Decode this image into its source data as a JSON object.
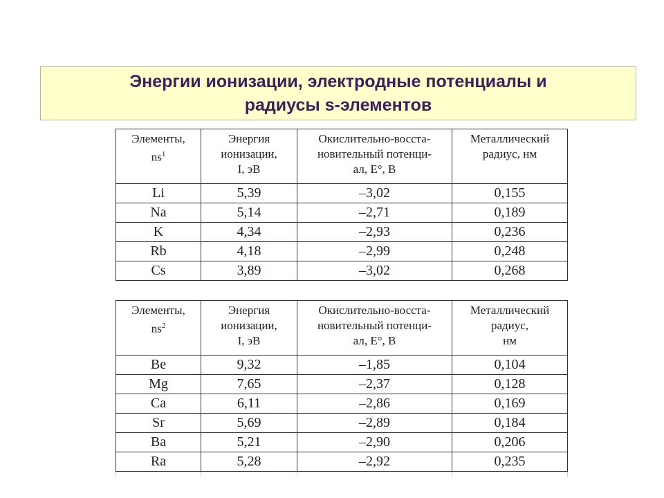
{
  "title": {
    "line1": "Энергии ионизации, электродные потенциалы и",
    "line2": "радиусы s-элементов"
  },
  "table1": {
    "header": {
      "col1": [
        "Элементы,",
        "ns"
      ],
      "col1_sup": "1",
      "col2": [
        "Энергия",
        "ионизации,",
        "I, эВ"
      ],
      "col3": [
        "Окислительно-восста-",
        "новительный потенци-",
        "ал, E°, В"
      ],
      "col4": [
        "Металлический",
        "радиус, нм"
      ]
    },
    "rows": [
      [
        "Li",
        "5,39",
        "–3,02",
        "0,155"
      ],
      [
        "Na",
        "5,14",
        "–2,71",
        "0,189"
      ],
      [
        "K",
        "4,34",
        "–2,93",
        "0,236"
      ],
      [
        "Rb",
        "4,18",
        "–2,99",
        "0,248"
      ],
      [
        "Cs",
        "3,89",
        "–3,02",
        "0,268"
      ]
    ]
  },
  "table2": {
    "header": {
      "col1": [
        "Элементы,",
        "ns"
      ],
      "col1_sup": "2",
      "col2": [
        "Энергия",
        "ионизации,",
        "I, эВ"
      ],
      "col3": [
        "Окислительно-восста-",
        "новительный потенци-",
        "ал, E°, В"
      ],
      "col4": [
        "Металлический",
        "радиус,",
        "нм"
      ]
    },
    "rows": [
      [
        "Be",
        "9,32",
        "–1,85",
        "0,104"
      ],
      [
        "Mg",
        "7,65",
        "–2,37",
        "0,128"
      ],
      [
        "Ca",
        "6,11",
        "–2,86",
        "0,169"
      ],
      [
        "Sr",
        "5,69",
        "–2,89",
        "0,184"
      ],
      [
        "Ba",
        "5,21",
        "–2,90",
        "0,206"
      ],
      [
        "Ra",
        "5,28",
        "–2,92",
        "0,235"
      ]
    ]
  }
}
